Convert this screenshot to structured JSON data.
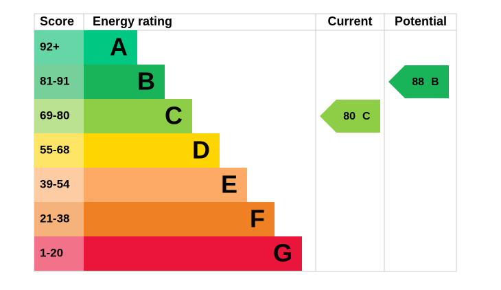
{
  "header": {
    "score": "Score",
    "rating": "Energy rating",
    "current": "Current",
    "potential": "Potential"
  },
  "bands": [
    {
      "score": "92+",
      "letter": "A",
      "color": "#00c781",
      "light": "#66d6a6"
    },
    {
      "score": "81-91",
      "letter": "B",
      "color": "#19b459",
      "light": "#75d09a"
    },
    {
      "score": "69-80",
      "letter": "C",
      "color": "#8dce46",
      "light": "#bbe290"
    },
    {
      "score": "55-68",
      "letter": "D",
      "color": "#ffd500",
      "light": "#ffe566"
    },
    {
      "score": "39-54",
      "letter": "E",
      "color": "#fcaa65",
      "light": "#fdcca3"
    },
    {
      "score": "21-38",
      "letter": "F",
      "color": "#ef8023",
      "light": "#f5b37b"
    },
    {
      "score": "1-20",
      "letter": "G",
      "color": "#e9153b",
      "light": "#f27389"
    }
  ],
  "current": {
    "score": 80,
    "letter": "C"
  },
  "potential": {
    "score": 88,
    "letter": "B"
  }
}
